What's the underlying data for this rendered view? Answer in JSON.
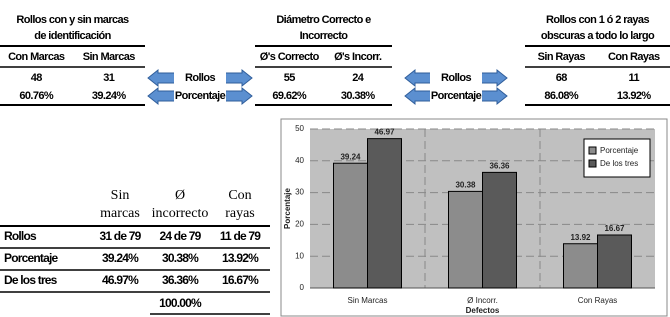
{
  "top_tables": [
    {
      "title_lines": [
        "Rollos con y sin marcas",
        "de identificación"
      ],
      "headers": [
        "Con Marcas",
        "Sin Marcas"
      ],
      "rows": [
        [
          "48",
          "31"
        ],
        [
          "60.76%",
          "39.24%"
        ]
      ]
    },
    {
      "title_lines": [
        "Diámetro Correcto e",
        "Incorrecto"
      ],
      "headers": [
        "Ø's Correcto",
        "Ø's Incorr."
      ],
      "rows": [
        [
          "55",
          "24"
        ],
        [
          "69.62%",
          "30.38%"
        ]
      ]
    },
    {
      "title_lines": [
        "Rollos con 1 ó 2 rayas",
        "obscuras a todo lo largo"
      ],
      "headers": [
        "Sin Rayas",
        "Con Rayas"
      ],
      "rows": [
        [
          "68",
          "11"
        ],
        [
          "86.08%",
          "13.92%"
        ]
      ]
    }
  ],
  "arrows": [
    [
      "Rollos",
      "Porcentaje"
    ],
    [
      "Rollos",
      "Porcentaje"
    ]
  ],
  "bottom_table": {
    "headers": [
      [
        "Sin",
        "marcas"
      ],
      [
        "Ø",
        "incorrecto"
      ],
      [
        "Con",
        "rayas"
      ]
    ],
    "rows": [
      {
        "label": "Rollos",
        "cells": [
          "31 de 79",
          "24 de 79",
          "11 de 79"
        ]
      },
      {
        "label": "Porcentaje",
        "cells": [
          "39.24%",
          "30.38%",
          "13.92%"
        ]
      },
      {
        "label": "De los tres",
        "cells": [
          "46.97%",
          "36.36%",
          "16.67%"
        ]
      }
    ],
    "total": "100.00%"
  },
  "chart_data": {
    "type": "bar",
    "x_label": "Defectos",
    "y_label": "Porcentaje",
    "categories": [
      "Sin Marcas",
      "Ø Incorr.",
      "Con Rayas"
    ],
    "series": [
      {
        "name": "Porcentaje",
        "color": "#8c8c8c",
        "values": [
          39.24,
          30.38,
          13.92
        ]
      },
      {
        "name": "De los tres",
        "color": "#5a5a5a",
        "values": [
          46.97,
          36.36,
          16.67
        ]
      }
    ],
    "ylim": [
      0,
      50
    ],
    "yticks": [
      0,
      10,
      20,
      30,
      40,
      50
    ],
    "grid": true,
    "legend": "top-right"
  }
}
